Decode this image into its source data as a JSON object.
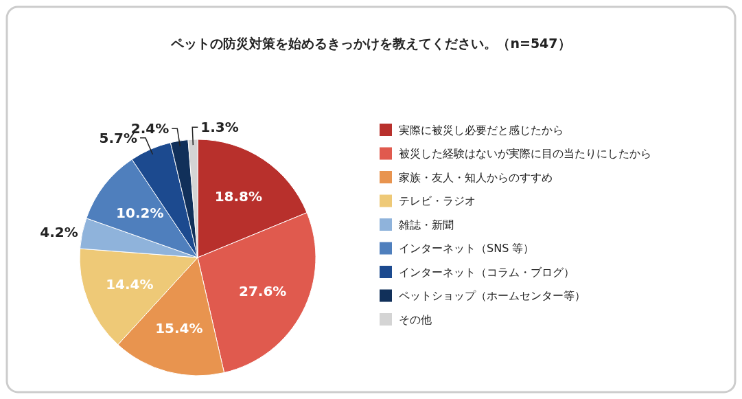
{
  "chart_data": {
    "type": "pie",
    "title": "ペットの防災対策を始めるきっかけを教えてください。（n=547）",
    "categories": [
      "実際に被災し必要だと感じたから",
      "被災した経験はないが実際に目の当たりにしたから",
      "家族・友人・知人からのすすめ",
      "テレビ・ラジオ",
      "雑誌・新聞",
      "インターネット（SNS 等）",
      "インターネット（コラム・ブログ）",
      "ペットショップ（ホームセンター等）",
      "その他"
    ],
    "values": [
      18.8,
      27.6,
      15.4,
      14.4,
      4.2,
      10.2,
      5.7,
      2.4,
      1.3
    ],
    "colors": [
      "#b8302c",
      "#e05a4e",
      "#e8944f",
      "#eec977",
      "#8fb3db",
      "#4f7fbd",
      "#1c4a8f",
      "#11305a",
      "#d4d4d4"
    ],
    "value_labels": [
      "18.8%",
      "27.6%",
      "15.4%",
      "14.4%",
      "4.2%",
      "10.2%",
      "5.7%",
      "2.4%",
      "1.3%"
    ],
    "legend": "right"
  }
}
